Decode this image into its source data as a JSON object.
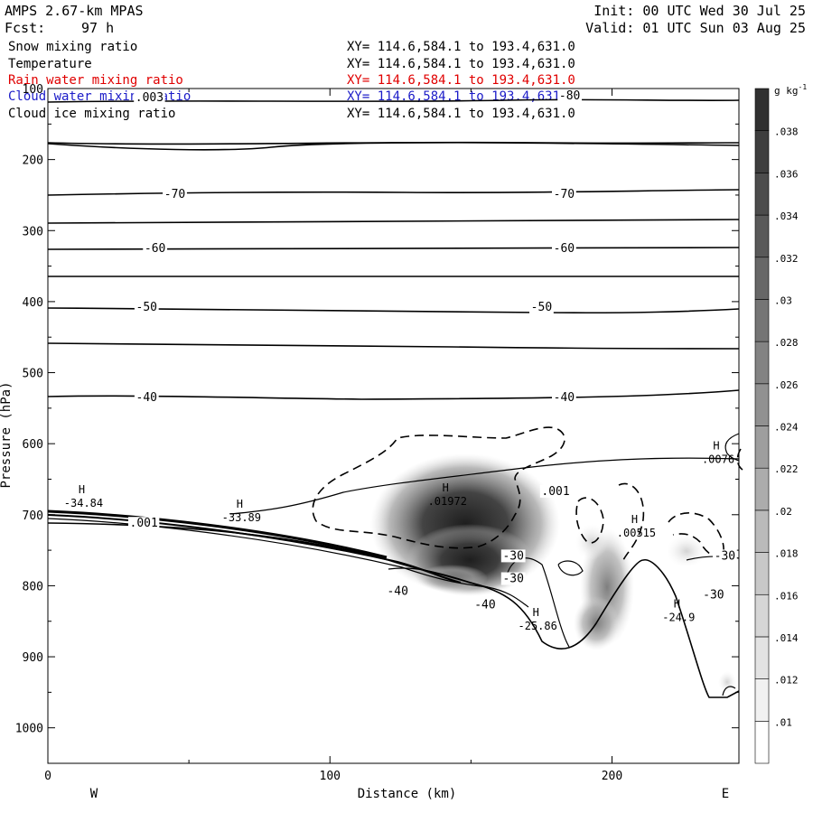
{
  "header": {
    "model": "AMPS 2.67-km MPAS",
    "fcst_label": "Fcst:",
    "fcst_value": "97 h",
    "init": "Init: 00 UTC Wed 30 Jul 25",
    "valid": "Valid: 01 UTC Sun 03 Aug 25"
  },
  "legend": [
    {
      "name": "Snow mixing ratio",
      "xy": "XY= 114.6,584.1 to 193.4,631.0",
      "color": "#000000"
    },
    {
      "name": "Temperature",
      "xy": "XY= 114.6,584.1 to 193.4,631.0",
      "color": "#000000"
    },
    {
      "name": "Rain water mixing ratio",
      "xy": "XY= 114.6,584.1 to 193.4,631.0",
      "color": "#e00000"
    },
    {
      "name": "Cloud water mixing ratio",
      "xy": "XY= 114.6,584.1 to 193.4,631.0",
      "color": "#1c1cc8"
    },
    {
      "name": "Cloud ice mixing ratio",
      "xy": "XY= 114.6,584.1 to 193.4,631.0",
      "color": "#000000"
    }
  ],
  "chart_data": {
    "type": "heatmap",
    "xlabel": "Distance (km)",
    "ylabel": "Pressure (hPa)",
    "xlim": [
      0,
      245
    ],
    "ylim": [
      1050,
      100
    ],
    "x_ticks": [
      "0",
      "100",
      "200"
    ],
    "y_ticks": [
      "100",
      "200",
      "300",
      "400",
      "500",
      "600",
      "700",
      "800",
      "900",
      "1000"
    ],
    "left_edge_label": "W",
    "right_edge_label": "E",
    "colorbar": {
      "unit": "g kg",
      "unit_exponent": "-1",
      "labels": [
        ".01",
        ".012",
        ".014",
        ".016",
        ".018",
        ".02",
        ".022",
        ".024",
        ".026",
        ".028",
        ".03",
        ".032",
        ".034",
        ".036",
        ".038"
      ]
    },
    "temperature_contours": [
      {
        "label": "-80",
        "p": 112
      },
      {
        "label": "-70",
        "p": 249
      },
      {
        "label": "-60",
        "p": 325
      },
      {
        "label": "-50",
        "p": 408
      },
      {
        "label": "-40",
        "p": 535
      },
      {
        "label": "-30",
        "p": 758
      }
    ],
    "annotations": [
      {
        "label": "H",
        "value": "-34.84",
        "x": 12,
        "p": 675
      },
      {
        "label": "H",
        "value": "-33.89",
        "x": 68,
        "p": 695
      },
      {
        "label": "H",
        "value": ".01972",
        "x": 141,
        "p": 672
      },
      {
        "label": "H",
        "value": ".00515",
        "x": 208,
        "p": 717
      },
      {
        "label": "H",
        "value": "-25.86",
        "x": 173,
        "p": 848
      },
      {
        "label": "H",
        "value": "-24.9",
        "x": 223,
        "p": 836
      },
      {
        "label": "H",
        "value": ".0076",
        "x": 237,
        "p": 613
      }
    ],
    "other_labels": [
      {
        "text": ".001",
        "x": 180,
        "p": 667
      },
      {
        "text": ".001",
        "x": 34,
        "p": 712
      },
      {
        "text": ".003",
        "x": 36,
        "p": 113
      },
      {
        "text": "-40",
        "x": 124,
        "p": 808
      },
      {
        "text": "-40",
        "x": 155,
        "p": 827
      },
      {
        "text": "-30",
        "x": 165,
        "p": 790
      },
      {
        "text": "-30",
        "x": 236,
        "p": 813
      }
    ]
  }
}
